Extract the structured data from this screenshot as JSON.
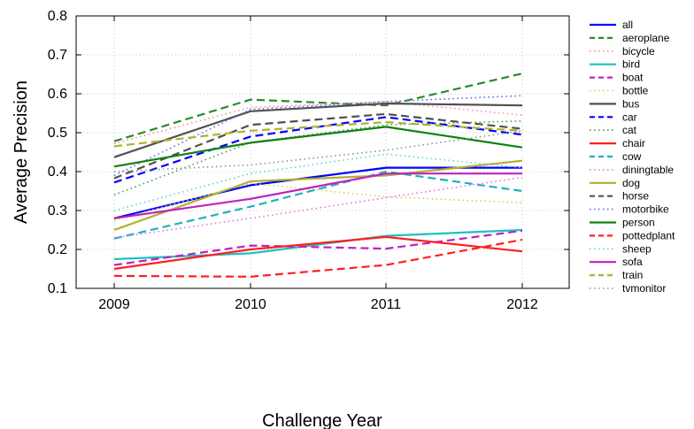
{
  "chart_data": {
    "type": "line",
    "xlabel": "Challenge Year",
    "ylabel": "Average Precision",
    "x": [
      "2009",
      "2010",
      "2011",
      "2012"
    ],
    "ylim": [
      0.1,
      0.8
    ],
    "yticks": [
      "0.1",
      "0.2",
      "0.3",
      "0.4",
      "0.5",
      "0.6",
      "0.7",
      "0.8"
    ],
    "grid": true,
    "legend_position": "right",
    "series": [
      {
        "name": "all",
        "color": "#0000ff",
        "style": "solid",
        "values": [
          0.28,
          0.365,
          0.41,
          0.41
        ]
      },
      {
        "name": "aeroplane",
        "color": "#2a8a2a",
        "style": "dashed",
        "values": [
          0.478,
          0.585,
          0.57,
          0.652
        ]
      },
      {
        "name": "bicycle",
        "color": "#ff8a8a",
        "style": "dotted",
        "values": [
          0.472,
          0.565,
          0.58,
          0.545
        ]
      },
      {
        "name": "bird",
        "color": "#20c0c0",
        "style": "solid",
        "values": [
          0.175,
          0.19,
          0.235,
          0.25
        ]
      },
      {
        "name": "boat",
        "color": "#c020c0",
        "style": "dashed",
        "values": [
          0.16,
          0.21,
          0.202,
          0.248
        ]
      },
      {
        "name": "bottle",
        "color": "#d0d050",
        "style": "dotted",
        "values": [
          0.275,
          0.37,
          0.335,
          0.32
        ]
      },
      {
        "name": "bus",
        "color": "#505050",
        "style": "solid",
        "values": [
          0.437,
          0.555,
          0.575,
          0.57
        ]
      },
      {
        "name": "car",
        "color": "#0000ff",
        "style": "dashed",
        "values": [
          0.372,
          0.49,
          0.54,
          0.495
        ]
      },
      {
        "name": "cat",
        "color": "#40a040",
        "style": "dotted",
        "values": [
          0.34,
          0.475,
          0.52,
          0.53
        ]
      },
      {
        "name": "chair",
        "color": "#ff2020",
        "style": "solid",
        "values": [
          0.15,
          0.2,
          0.232,
          0.195
        ]
      },
      {
        "name": "cow",
        "color": "#20b0c0",
        "style": "dashed",
        "values": [
          0.228,
          0.31,
          0.4,
          0.35
        ]
      },
      {
        "name": "diningtable",
        "color": "#e070e0",
        "style": "dotted",
        "values": [
          0.23,
          0.28,
          0.333,
          0.385
        ]
      },
      {
        "name": "dog",
        "color": "#b0b030",
        "style": "solid",
        "values": [
          0.25,
          0.375,
          0.39,
          0.428
        ]
      },
      {
        "name": "horse",
        "color": "#505050",
        "style": "dashed",
        "values": [
          0.383,
          0.52,
          0.548,
          0.51
        ]
      },
      {
        "name": "motorbike",
        "color": "#6060ff",
        "style": "dotted",
        "values": [
          0.39,
          0.56,
          0.58,
          0.595
        ]
      },
      {
        "name": "person",
        "color": "#108010",
        "style": "solid",
        "values": [
          0.413,
          0.474,
          0.515,
          0.462
        ]
      },
      {
        "name": "pottedplant",
        "color": "#ff2020",
        "style": "dashed",
        "values": [
          0.132,
          0.13,
          0.16,
          0.225
        ]
      },
      {
        "name": "sheep",
        "color": "#60d0d0",
        "style": "dotted",
        "values": [
          0.3,
          0.395,
          0.445,
          0.41
        ]
      },
      {
        "name": "sofa",
        "color": "#c020c0",
        "style": "solid",
        "values": [
          0.28,
          0.33,
          0.395,
          0.395
        ]
      },
      {
        "name": "train",
        "color": "#b0b030",
        "style": "dashed",
        "values": [
          0.465,
          0.505,
          0.527,
          0.505
        ]
      },
      {
        "name": "tvmonitor",
        "color": "#909090",
        "style": "dotted",
        "values": [
          0.4,
          0.417,
          0.455,
          0.505
        ]
      }
    ]
  }
}
